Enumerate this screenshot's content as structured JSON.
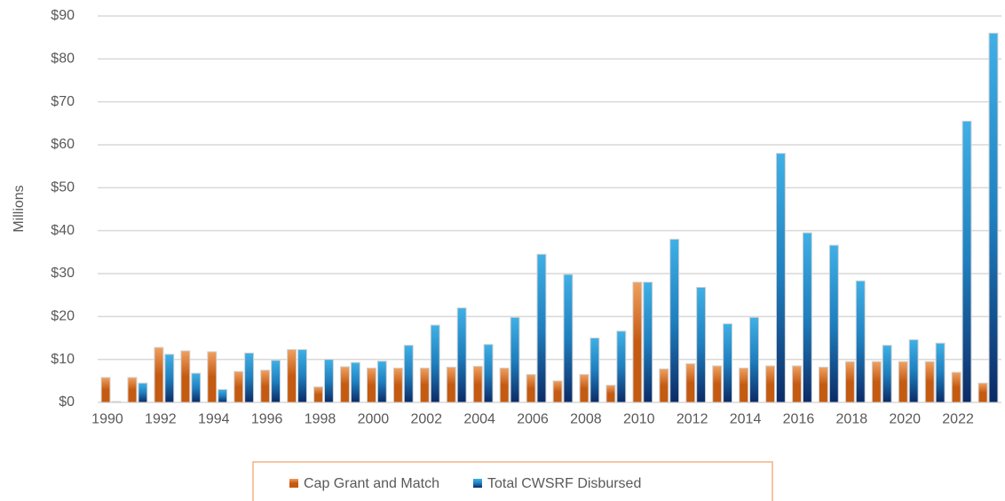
{
  "chart_data": {
    "type": "bar",
    "y_label": "Millions",
    "categories": [
      "1990",
      null,
      "1992",
      null,
      "1994",
      null,
      "1996",
      null,
      "1998",
      null,
      "2000",
      null,
      "2002",
      null,
      "2004",
      null,
      "2006",
      null,
      "2008",
      null,
      "2010",
      null,
      "2012",
      null,
      "2014",
      null,
      "2016",
      null,
      "2018",
      null,
      "2020",
      null,
      "2022",
      null
    ],
    "series": [
      {
        "name": "Cap Grant and Match",
        "color": "#c55a11",
        "values": [
          5.8,
          5.8,
          12.8,
          12,
          11.8,
          7.2,
          7.5,
          12.3,
          3.6,
          8.3,
          8,
          8,
          8,
          8.2,
          8.4,
          8,
          6.5,
          5,
          6.5,
          4,
          28,
          7.8,
          9,
          8.5,
          8,
          8.5,
          8.5,
          8.2,
          9.5,
          9.5,
          9.5,
          9.5,
          7,
          4.5
        ]
      },
      {
        "name": "Total CWSRF Disbursed",
        "color": "#1f7fbf",
        "values": [
          0.2,
          4.5,
          11.2,
          6.8,
          3,
          11.5,
          9.8,
          12.3,
          10,
          9.3,
          9.6,
          13.3,
          18,
          22,
          13.5,
          19.8,
          34.5,
          29.8,
          15,
          16.6,
          28,
          38,
          26.8,
          18.3,
          19.8,
          58,
          39.5,
          36.6,
          28.3,
          13.3,
          14.6,
          13.8,
          65.5,
          86
        ]
      }
    ],
    "ylim": [
      0,
      90
    ],
    "yticks": [
      {
        "value": 0,
        "label": "$0"
      },
      {
        "value": 10,
        "label": "$10"
      },
      {
        "value": 20,
        "label": "$20"
      },
      {
        "value": 30,
        "label": "$30"
      },
      {
        "value": 40,
        "label": "$40"
      },
      {
        "value": 50,
        "label": "$50"
      },
      {
        "value": 60,
        "label": "$60"
      },
      {
        "value": 70,
        "label": "$70"
      },
      {
        "value": 80,
        "label": "$80"
      },
      {
        "value": 90,
        "label": "$90"
      }
    ],
    "grid": true,
    "legend": "bottom"
  }
}
